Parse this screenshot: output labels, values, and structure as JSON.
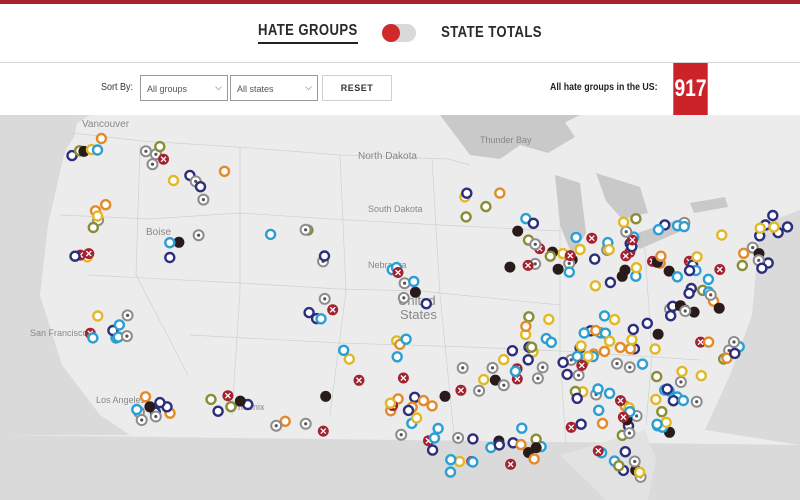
{
  "header": {
    "tab_hate_groups": "HATE GROUPS",
    "tab_state_totals": "STATE TOTALS",
    "toggle_state": "hate-groups"
  },
  "controls": {
    "sort_label": "Sort By:",
    "groups_select": "All groups",
    "states_select": "All states",
    "reset_label": "RESET",
    "total_label": "All hate groups in the US:",
    "total_count": "917"
  },
  "map": {
    "labels": [
      "Vancouver",
      "North Dakota",
      "Thunder Bay",
      "South Dakota",
      "Nebraska",
      "United States",
      "San Francisco",
      "Los Angeles",
      "Phoenix",
      "Boise"
    ]
  },
  "colors": {
    "brand_red": "#cc2229",
    "marker_blue": "#2b9fd3",
    "marker_navy": "#2b2f7c",
    "marker_orange": "#e38a2a",
    "marker_olive": "#8a8d34",
    "marker_yellow": "#e2b826",
    "marker_darkred": "#a32230",
    "marker_black": "#2a1b1b",
    "marker_gray": "#8c8c8c"
  }
}
